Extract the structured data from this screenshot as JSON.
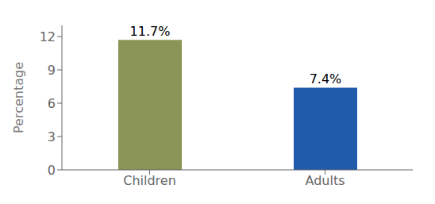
{
  "chart_data": {
    "type": "bar",
    "categories": [
      "Children",
      "Adults"
    ],
    "values": [
      11.7,
      7.4
    ],
    "value_labels": [
      "11.7%",
      "7.4%"
    ],
    "data_labels": true,
    "colors": [
      "#8b9457",
      "#1f5aab"
    ],
    "ylabel": "Percentage",
    "ylim": [
      0,
      13
    ],
    "yticks": [
      0,
      3,
      6,
      9,
      12
    ],
    "grid": false
  }
}
